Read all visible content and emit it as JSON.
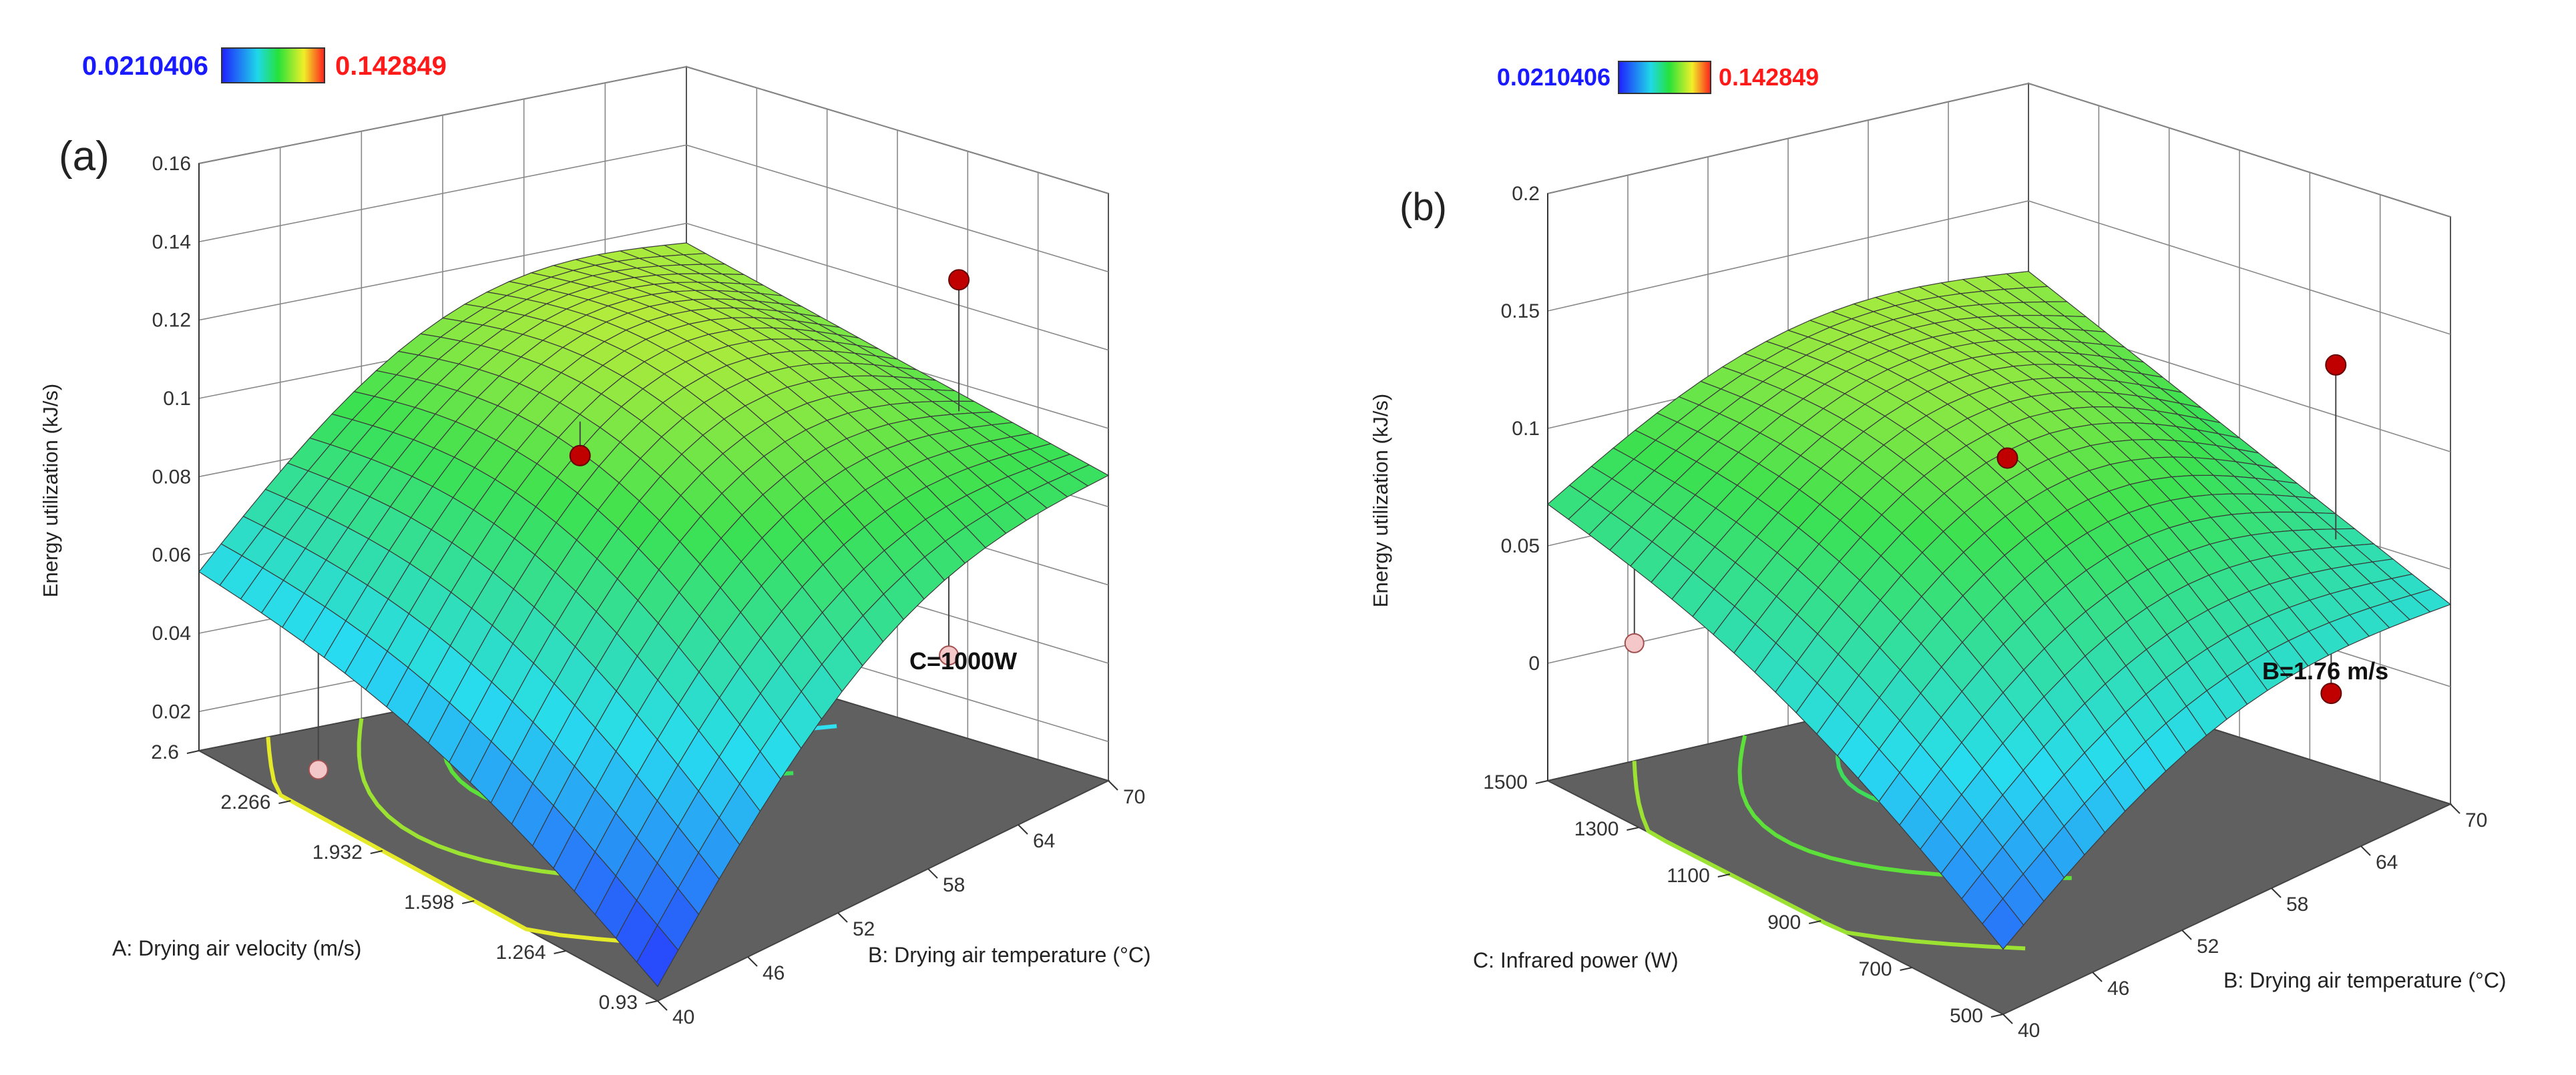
{
  "chart_data": [
    {
      "panel": "(a)",
      "type": "surface3d",
      "zlabel": "Energy utilization (kJ/s)",
      "xlabel": "A: Drying air velocity (m/s)",
      "ylabel": "B: Drying air temperature (°C)",
      "colorbar": {
        "min": "0.0210406",
        "max": "0.142849",
        "min_color": "#1a1aff",
        "max_color": "#ff1a1a"
      },
      "annotation": "C=1000W",
      "x_ticks": [
        "2.6",
        "2.266",
        "1.932",
        "1.598",
        "1.264",
        "0.93"
      ],
      "y_ticks": [
        "40",
        "46",
        "52",
        "58",
        "64",
        "70"
      ],
      "z_ticks": [
        "0.02",
        "0.04",
        "0.06",
        "0.08",
        "0.1",
        "0.12",
        "0.14",
        "0.16"
      ],
      "zlim": [
        0.01,
        0.16
      ],
      "surface": {
        "description": "z(a,b) over a in [0.93,2.6] m/s, b in [40,70] °C; corner values",
        "at_a_max_b_min": 0.054,
        "at_a_min_b_min": 0.012,
        "at_a_max_b_max": 0.115,
        "at_a_min_b_max": 0.088,
        "peak": 0.14
      },
      "design_points": [
        {
          "a": 1.9,
          "b": 52,
          "z": 0.097,
          "above_surface": true
        },
        {
          "a": 1.4,
          "b": 68,
          "z": 0.132,
          "above_surface": true
        },
        {
          "a": 1.2,
          "b": 64,
          "z": 0.047,
          "above_surface": false
        },
        {
          "a": 2.4,
          "b": 44,
          "z": 0.009,
          "above_surface": false
        }
      ],
      "contours": 5
    },
    {
      "panel": "(b)",
      "type": "surface3d",
      "zlabel": "Energy utilization (kJ/s)",
      "xlabel": "C: Infrared power (W)",
      "ylabel": "B: Drying air temperature (°C)",
      "colorbar": {
        "min": "0.0210406",
        "max": "0.142849",
        "min_color": "#1a1aff",
        "max_color": "#ff1a1a"
      },
      "annotation": "B=1.76 m/s",
      "x_ticks": [
        "1500",
        "1300",
        "1100",
        "900",
        "700",
        "500"
      ],
      "y_ticks": [
        "40",
        "46",
        "52",
        "58",
        "64",
        "70"
      ],
      "z_ticks": [
        "0",
        "0.05",
        "0.1",
        "0.15",
        "0.2"
      ],
      "zlim": [
        -0.05,
        0.2
      ],
      "surface": {
        "description": "z(c,b) over c in [500,1500] W, b in [40,70] °C; corner values",
        "at_c_max_b_min": 0.065,
        "at_c_min_b_min": -0.025,
        "at_c_max_b_max": 0.12,
        "at_c_min_b_max": 0.035,
        "peak": 0.16
      },
      "design_points": [
        {
          "c": 1000,
          "b": 55,
          "z": 0.103,
          "above_surface": true
        },
        {
          "c": 700,
          "b": 68,
          "z": 0.131,
          "above_surface": true
        },
        {
          "c": 500,
          "b": 62,
          "z": 0.021,
          "above_surface": true
        },
        {
          "c": 1450,
          "b": 44,
          "z": 0.007,
          "above_surface": false
        }
      ],
      "contours": 4
    }
  ]
}
